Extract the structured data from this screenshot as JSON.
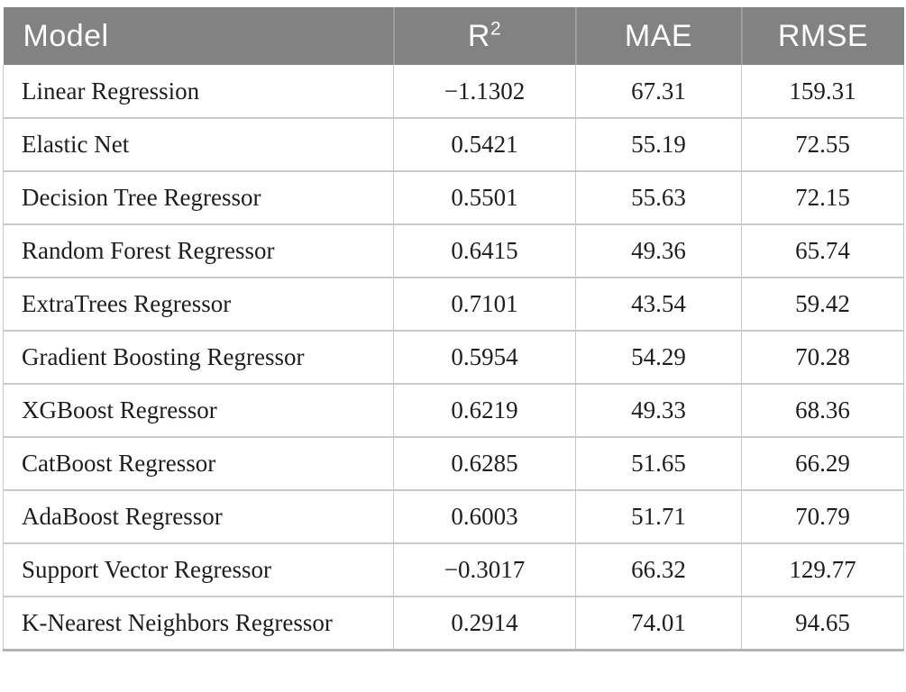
{
  "header": {
    "model": "Model",
    "r2_base": "R",
    "r2_sup": "2",
    "mae": "MAE",
    "rmse": "RMSE"
  },
  "colors": {
    "header_background": "#828282",
    "header_text": "#fdfdfd",
    "body_text": "#1e1e1e",
    "grid_line": "#c9c9c9",
    "bottom_border": "#b3b3b3"
  },
  "chart_data": {
    "type": "table",
    "title": "",
    "columns": [
      "Model",
      "R²",
      "MAE",
      "RMSE"
    ],
    "rows": [
      [
        "Linear Regression",
        "−1.1302",
        "67.31",
        "159.31"
      ],
      [
        "Elastic Net",
        "0.5421",
        "55.19",
        "72.55"
      ],
      [
        "Decision Tree Regressor",
        "0.5501",
        "55.63",
        "72.15"
      ],
      [
        "Random Forest Regressor",
        "0.6415",
        "49.36",
        "65.74"
      ],
      [
        "ExtraTrees Regressor",
        "0.7101",
        "43.54",
        "59.42"
      ],
      [
        "Gradient Boosting Regressor",
        "0.5954",
        "54.29",
        "70.28"
      ],
      [
        "XGBoost Regressor",
        "0.6219",
        "49.33",
        "68.36"
      ],
      [
        "CatBoost Regressor",
        "0.6285",
        "51.65",
        "66.29"
      ],
      [
        "AdaBoost Regressor",
        "0.6003",
        "51.71",
        "70.79"
      ],
      [
        "Support Vector Regressor",
        "−0.3017",
        "66.32",
        "129.77"
      ],
      [
        "K-Nearest Neighbors Regressor",
        "0.2914",
        "74.01",
        "94.65"
      ]
    ]
  }
}
